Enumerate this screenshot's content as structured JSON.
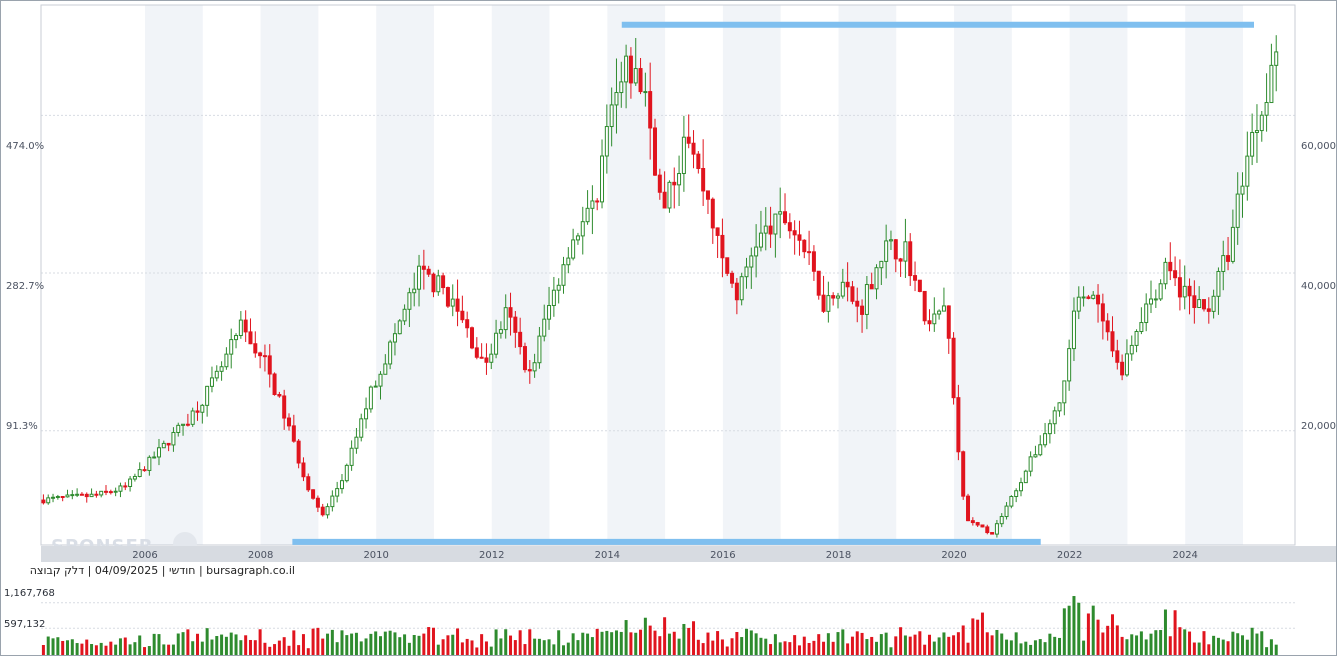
{
  "chart_data": {
    "type": "candlestick",
    "subtype": "monthly candlestick with volume",
    "x_axis_ticks": [
      "2006",
      "2008",
      "2010",
      "2012",
      "2014",
      "2016",
      "2018",
      "2020",
      "2022",
      "2024"
    ],
    "left_axis_ticks": [
      "474.0%",
      "282.7%",
      "91.3%"
    ],
    "right_axis_ticks": [
      "60,000",
      "40,000",
      "20,000"
    ],
    "right_axis_values": [
      60000,
      40000,
      20000
    ],
    "volume_ticks": [
      "1,167,768",
      "597,132"
    ],
    "info_label": "חודשי | 04/09/2025 | דלק קבוצה | bursagraph.co.il",
    "watermark": "SPONSER",
    "x_range": [
      2004.2,
      2025.9
    ],
    "y_range": [
      5500,
      74000
    ],
    "volume_max": 1700000,
    "grid": true,
    "price_anchors": [
      [
        2004.2,
        11200
      ],
      [
        2005.2,
        11800
      ],
      [
        2005.7,
        12800
      ],
      [
        2006.3,
        17500
      ],
      [
        2006.9,
        22500
      ],
      [
        2007.3,
        27000
      ],
      [
        2007.7,
        33000
      ],
      [
        2008.1,
        29000
      ],
      [
        2008.5,
        21000
      ],
      [
        2008.8,
        14000
      ],
      [
        2009.1,
        9000
      ],
      [
        2009.5,
        14500
      ],
      [
        2009.9,
        24000
      ],
      [
        2010.3,
        31000
      ],
      [
        2010.8,
        40000
      ],
      [
        2011.2,
        38000
      ],
      [
        2011.6,
        33000
      ],
      [
        2011.9,
        28000
      ],
      [
        2012.3,
        35000
      ],
      [
        2012.7,
        27000
      ],
      [
        2013.0,
        35000
      ],
      [
        2013.4,
        44000
      ],
      [
        2013.8,
        48000
      ],
      [
        2014.1,
        60000
      ],
      [
        2014.4,
        66000
      ],
      [
        2014.7,
        63000
      ],
      [
        2015.0,
        47000
      ],
      [
        2015.4,
        57000
      ],
      [
        2015.8,
        49000
      ],
      [
        2016.0,
        42000
      ],
      [
        2016.3,
        37000
      ],
      [
        2016.6,
        44000
      ],
      [
        2017.1,
        47000
      ],
      [
        2017.4,
        44000
      ],
      [
        2017.8,
        36000
      ],
      [
        2018.1,
        39000
      ],
      [
        2018.4,
        35000
      ],
      [
        2018.8,
        43000
      ],
      [
        2019.2,
        43000
      ],
      [
        2019.6,
        33000
      ],
      [
        2019.9,
        36000
      ],
      [
        2020.1,
        18000
      ],
      [
        2020.25,
        8500
      ],
      [
        2020.7,
        7000
      ],
      [
        2021.0,
        11000
      ],
      [
        2021.5,
        18000
      ],
      [
        2021.9,
        24000
      ],
      [
        2022.2,
        38000
      ],
      [
        2022.5,
        36000
      ],
      [
        2022.9,
        27000
      ],
      [
        2023.3,
        35000
      ],
      [
        2023.7,
        40000
      ],
      [
        2024.1,
        37000
      ],
      [
        2024.4,
        35000
      ],
      [
        2024.8,
        43000
      ],
      [
        2025.1,
        55000
      ],
      [
        2025.4,
        62000
      ],
      [
        2025.6,
        69000
      ]
    ],
    "annotations": [
      {
        "type": "horizontal-line",
        "label": "",
        "y": 71500,
        "x": [
          2014.25,
          2026.3
        ],
        "color": "#7fbfef"
      },
      {
        "type": "horizontal-line",
        "label": "",
        "y": 5900,
        "x": [
          2008.55,
          2021.5
        ],
        "color": "#7fbfef"
      }
    ],
    "colors": {
      "up": "#2e8b2e",
      "down": "#e0141e",
      "band": "#f1f4f8",
      "grid": "#d7dbe2",
      "x_axis_bar": "#d7dbe1"
    }
  }
}
